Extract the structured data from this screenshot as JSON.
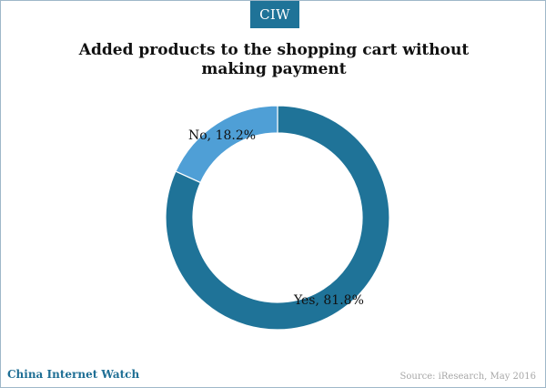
{
  "header": {
    "badge_label": "CIW"
  },
  "chart_data": {
    "type": "pie",
    "title": "Added products to the shopping cart without making payment",
    "categories": [
      "Yes",
      "No"
    ],
    "values": [
      81.8,
      18.2
    ],
    "value_unit": "%",
    "data_labels": [
      "Yes, 81.8%",
      "No, 18.2%"
    ],
    "colors": [
      "#1f7398",
      "#4f9fd6"
    ],
    "donut": true,
    "legend": "none"
  },
  "footer": {
    "brand": "China Internet Watch",
    "source": "Source: iResearch, May 2016"
  }
}
